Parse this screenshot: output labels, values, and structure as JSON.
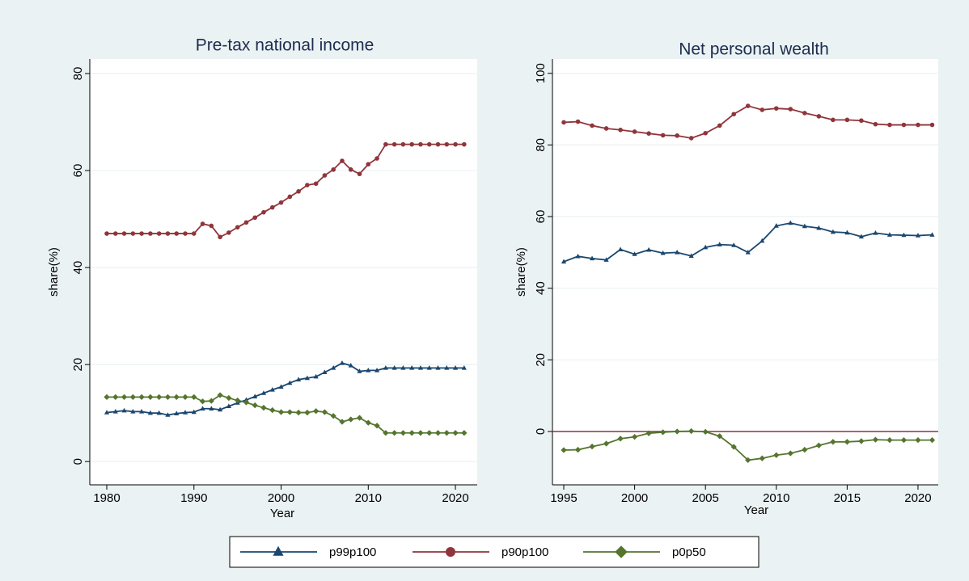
{
  "chart_data": [
    {
      "type": "line",
      "title": "Pre-tax national income",
      "xlabel": "Year",
      "ylabel": "share(%)",
      "x": [
        1980,
        1981,
        1982,
        1983,
        1984,
        1985,
        1986,
        1987,
        1988,
        1989,
        1990,
        1991,
        1992,
        1993,
        1994,
        1995,
        1996,
        1997,
        1998,
        1999,
        2000,
        2001,
        2002,
        2003,
        2004,
        2005,
        2006,
        2007,
        2008,
        2009,
        2010,
        2011,
        2012,
        2013,
        2014,
        2015,
        2016,
        2017,
        2018,
        2019,
        2020,
        2021
      ],
      "xlim": [
        1978.05,
        2022.5
      ],
      "xticks": [
        1980,
        1990,
        2000,
        2010,
        2020
      ],
      "ylim": [
        -4.8,
        83
      ],
      "yticks": [
        0,
        20,
        40,
        60,
        80
      ],
      "grid": true,
      "series": [
        {
          "name": "p99p100",
          "color": "#1a476f",
          "marker": "triangle",
          "values": [
            10.1,
            10.3,
            10.5,
            10.3,
            10.3,
            10.0,
            10.0,
            9.6,
            9.9,
            10.1,
            10.2,
            10.9,
            10.9,
            10.7,
            11.4,
            12.1,
            12.7,
            13.4,
            14.1,
            14.8,
            15.4,
            16.2,
            16.9,
            17.2,
            17.5,
            18.4,
            19.3,
            20.3,
            19.8,
            18.6,
            18.8,
            18.8,
            19.3,
            19.3,
            19.3,
            19.3,
            19.3,
            19.3,
            19.3,
            19.3,
            19.3,
            19.3
          ]
        },
        {
          "name": "p90p100",
          "color": "#90353b",
          "marker": "circle",
          "values": [
            47,
            47,
            47,
            47,
            47,
            47,
            47,
            47,
            47,
            47,
            47,
            49,
            48.6,
            46.3,
            47.2,
            48.3,
            49.3,
            50.3,
            51.4,
            52.4,
            53.4,
            54.6,
            55.7,
            57.0,
            57.3,
            59.0,
            60.2,
            62.0,
            60.2,
            59.3,
            61.3,
            62.5,
            65.4,
            65.4,
            65.4,
            65.4,
            65.4,
            65.4,
            65.4,
            65.4,
            65.4,
            65.4
          ]
        },
        {
          "name": "p0p50",
          "color": "#55752f",
          "marker": "diamond",
          "values": [
            13.3,
            13.3,
            13.3,
            13.3,
            13.3,
            13.3,
            13.3,
            13.3,
            13.3,
            13.3,
            13.3,
            12.4,
            12.5,
            13.7,
            13.1,
            12.6,
            12.2,
            11.6,
            11.1,
            10.6,
            10.2,
            10.2,
            10.1,
            10.1,
            10.4,
            10.2,
            9.4,
            8.2,
            8.7,
            9.0,
            8.0,
            7.4,
            5.9,
            5.9,
            5.9,
            5.9,
            5.9,
            5.9,
            5.9,
            5.9,
            5.9,
            5.9
          ]
        }
      ]
    },
    {
      "type": "line",
      "title": "Net personal wealth",
      "xlabel": "Year",
      "ylabel": "share(%)",
      "x": [
        1995,
        1996,
        1997,
        1998,
        1999,
        2000,
        2001,
        2002,
        2003,
        2004,
        2005,
        2006,
        2007,
        2008,
        2009,
        2010,
        2011,
        2012,
        2013,
        2014,
        2015,
        2016,
        2017,
        2018,
        2019,
        2020,
        2021
      ],
      "xlim": [
        1994.2,
        2021.43
      ],
      "xticks": [
        1995,
        2000,
        2005,
        2010,
        2015,
        2020
      ],
      "ylim": [
        -14.9,
        104
      ],
      "yticks": [
        0,
        20,
        40,
        60,
        80,
        100
      ],
      "grid": true,
      "refline": 0,
      "refline_color": "#90353b",
      "series": [
        {
          "color": "#1a476f",
          "marker": "triangle",
          "values": [
            47.4,
            48.9,
            48.3,
            47.9,
            50.8,
            49.5,
            50.7,
            49.8,
            50.0,
            49.0,
            51.4,
            52.2,
            52.0,
            50.0,
            53.2,
            57.4,
            58.2,
            57.3,
            56.8,
            55.7,
            55.5,
            54.4,
            55.4,
            54.9,
            54.8,
            54.7,
            54.9
          ]
        },
        {
          "color": "#90353b",
          "marker": "circle",
          "values": [
            86.3,
            86.5,
            85.4,
            84.6,
            84.2,
            83.7,
            83.2,
            82.7,
            82.6,
            81.9,
            83.3,
            85.4,
            88.6,
            90.9,
            89.8,
            90.2,
            90.0,
            88.9,
            88.0,
            87.0,
            87.0,
            86.8,
            85.8,
            85.6,
            85.6,
            85.6,
            85.6
          ]
        },
        {
          "color": "#55752f",
          "marker": "diamond",
          "values": [
            -5.2,
            -5.1,
            -4.2,
            -3.4,
            -2.0,
            -1.5,
            -0.5,
            -0.2,
            0,
            0.1,
            -0.1,
            -1.3,
            -4.3,
            -8.0,
            -7.5,
            -6.6,
            -6.1,
            -5.1,
            -3.9,
            -2.9,
            -2.9,
            -2.7,
            -2.3,
            -2.4,
            -2.4,
            -2.4,
            -2.4
          ]
        }
      ]
    }
  ]
}
